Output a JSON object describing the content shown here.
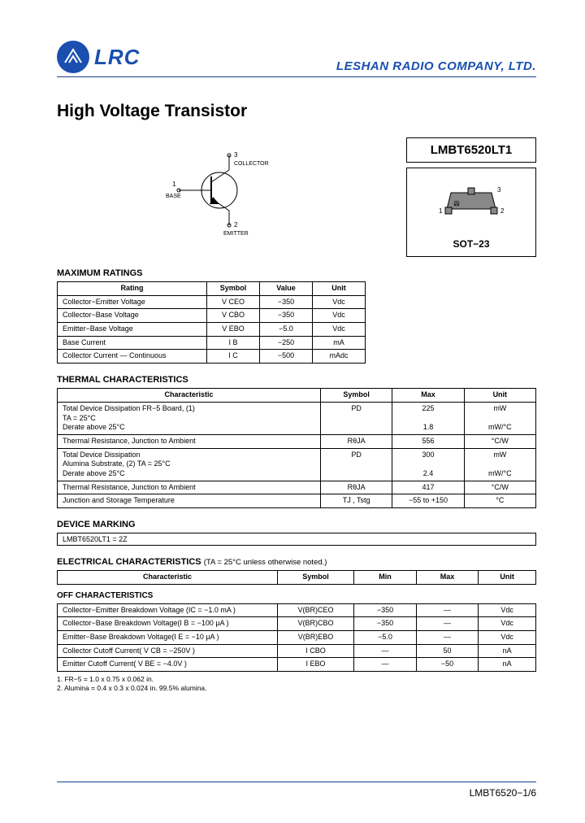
{
  "header": {
    "logo_text": "LRC",
    "company": "LESHAN RADIO COMPANY, LTD."
  },
  "title": "High Voltage Transistor",
  "part": {
    "number": "LMBT6520LT1",
    "package": "SOT−23"
  },
  "schematic": {
    "pin1": "1",
    "pin1_label": "BASE",
    "pin2": "2",
    "pin2_label": "EMITTER",
    "pin3": "3",
    "pin3_label": "COLLECTOR"
  },
  "ratings": {
    "title": "MAXIMUM RATINGS",
    "headers": [
      "Rating",
      "Symbol",
      "Value",
      "Unit"
    ],
    "rows": [
      [
        "Collector−Emitter Voltage",
        "V CEO",
        "−350",
        "Vdc"
      ],
      [
        "Collector−Base Voltage",
        "V CBO",
        "−350",
        "Vdc"
      ],
      [
        "Emitter−Base Voltage",
        "V EBO",
        "−5.0",
        "Vdc"
      ],
      [
        "Base Current",
        "I B",
        "−250",
        "mA"
      ],
      [
        "Collector Current — Continuous",
        "I C",
        "−500",
        "mAdc"
      ]
    ]
  },
  "thermal": {
    "title": "THERMAL CHARACTERISTICS",
    "headers": [
      "Characteristic",
      "Symbol",
      "Max",
      "Unit"
    ],
    "rows": [
      [
        "Total Device Dissipation FR−5 Board, (1)\nTA = 25°C\nDerate above 25°C",
        "PD",
        "225\n\n1.8",
        "mW\n\nmW/°C"
      ],
      [
        "Thermal Resistance, Junction to Ambient",
        "RθJA",
        "556",
        "°C/W"
      ],
      [
        "Total Device Dissipation\nAlumina Substrate, (2) TA = 25°C\nDerate above 25°C",
        "PD",
        "300\n\n2.4",
        "mW\n\nmW/°C"
      ],
      [
        "Thermal Resistance, Junction to Ambient",
        "RθJA",
        "417",
        "°C/W"
      ],
      [
        "Junction and Storage Temperature",
        "TJ , Tstg",
        "−55 to +150",
        "°C"
      ]
    ]
  },
  "marking": {
    "title": "DEVICE MARKING",
    "text": "LMBT6520LT1 = 2Z"
  },
  "electrical": {
    "title": "ELECTRICAL CHARACTERISTICS",
    "note": "(TA = 25°C unless otherwise noted.)",
    "headers": [
      "Characteristic",
      "Symbol",
      "Min",
      "Max",
      "Unit"
    ],
    "off_title": "OFF CHARACTERISTICS",
    "off_rows": [
      [
        "Collector−Emitter Breakdown Voltage (IC = −1.0 mA )",
        "V(BR)CEO",
        "−350",
        "—",
        "Vdc"
      ],
      [
        "Collector−Base Breakdown Voltage(I B = −100 μA )",
        "V(BR)CBO",
        "−350",
        "—",
        "Vdc"
      ],
      [
        "Emitter−Base Breakdown Voltage(I E = −10 μA )",
        "V(BR)EBO",
        "−5.0",
        "—",
        "Vdc"
      ],
      [
        "Collector Cutoff Current( V CB = −250V )",
        "I CBO",
        "—",
        "50",
        "nA"
      ],
      [
        "Emitter Cutoff Current( V BE = −4.0V )",
        "I EBO",
        "—",
        "−50",
        "nA"
      ]
    ]
  },
  "footnotes": [
    "1. FR−5 = 1.0 x 0.75 x 0.062 in.",
    "2. Alumina = 0.4 x 0.3 x 0.024 in. 99.5% alumina."
  ],
  "footer": "LMBT6520−1/6",
  "colors": {
    "brand": "#1a4fb0",
    "rule": "#1a3f8f"
  }
}
